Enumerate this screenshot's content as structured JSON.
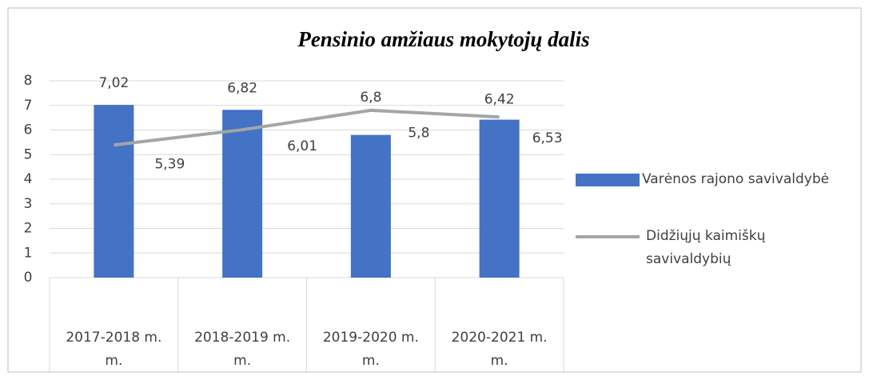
{
  "chart_data": {
    "type": "bar",
    "title": "Pensinio amžiaus mokytojų dalis",
    "categories": [
      "2017-2018 m. m.",
      "2018-2019 m. m.",
      "2019-2020 m. m.",
      "2020-2021 m. m."
    ],
    "series": [
      {
        "name": "Varėnos rajono savivaldybė",
        "color": "#4472c4",
        "type": "bar",
        "values": [
          7.02,
          6.82,
          5.8,
          6.42
        ],
        "value_labels": [
          "7,02",
          "6,82",
          "5,8",
          "6,42"
        ]
      },
      {
        "name": "Didžiųjų kaimiškų savivaldybių",
        "color": "#a5a5a5",
        "type": "line",
        "values": [
          5.39,
          6.01,
          6.8,
          6.53
        ],
        "value_labels": [
          "5,39",
          "6,01",
          "6,8",
          "6,53"
        ]
      }
    ],
    "ylim": [
      0,
      8
    ],
    "yticks": [
      0,
      1,
      2,
      3,
      4,
      5,
      6,
      7,
      8
    ],
    "grid": true,
    "legend": "right"
  }
}
